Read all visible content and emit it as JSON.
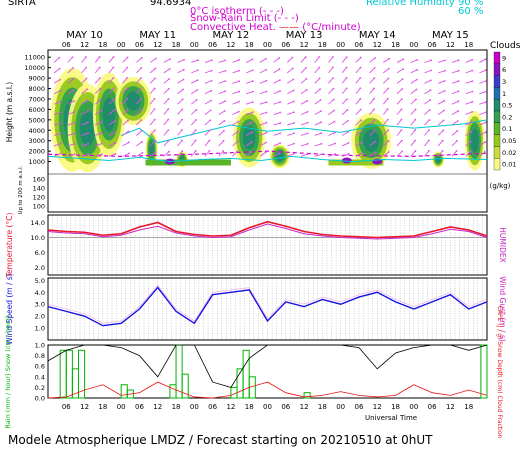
{
  "header": {
    "site": "SIRTA",
    "lon": "94.6934",
    "isotherm_label": "0°C isotherm",
    "isotherm_key": "(- - -)",
    "snow_rain_label": "Snow-Rain Limit",
    "snow_rain_key": "(- - -)",
    "convective_label": "Convective Heat.",
    "convective_unit": "(°C/minute)",
    "rh_label": "Relative Humidity",
    "rh_value_1": "90 %",
    "rh_value_2": "60 %"
  },
  "days": [
    "MAY 10",
    "MAY 11",
    "MAY 12",
    "MAY 13",
    "MAY 14",
    "MAY 15"
  ],
  "hours": [
    "06",
    "12",
    "18",
    "00"
  ],
  "universal_time_label": "Universal Time",
  "footer": "Modele Atmospherique LMDZ / Forecast starting on 20210510 at 0hUT",
  "colors": {
    "temperature": "#e8142a",
    "humidex": "#c828c8",
    "wind": "#1414e0",
    "rain": "#00b400",
    "cape": "#e81414",
    "wind_arrow": "#e050e8",
    "rh_contour": "#00c8d2"
  },
  "chart_data": [
    {
      "type": "heatmap",
      "title": "Clouds",
      "ylabel": "Height (m a.s.l.)",
      "ylabel_lower": "Up to 200 m a.s.l.",
      "yticks": [
        "11000",
        "10000",
        "9000",
        "8000",
        "7000",
        "6000",
        "5000",
        "4000",
        "3000",
        "2000",
        "1000",
        "160",
        "140",
        "120",
        "100"
      ],
      "ylim": [
        0,
        11500
      ],
      "colorbar_label": "(g/kg)",
      "colorbar_ticks": [
        "9",
        "6",
        "3",
        "1",
        "0.5",
        "0.2",
        "0.1",
        "0.05",
        "0.02",
        "0.01"
      ],
      "colorbar_colors": [
        "#c800c8",
        "#8a14be",
        "#3c3cc8",
        "#1e6eb4",
        "#1e8c6e",
        "#32a050",
        "#5ab428",
        "#96c81e",
        "#c8dc3c",
        "#fafa82"
      ]
    },
    {
      "type": "line",
      "ylabel": "Temperature (°C)",
      "ylabel_right": "HUMIDEX",
      "yticks": [
        "14.0",
        "10.0",
        "6.0",
        "2.0"
      ],
      "ylim": [
        0,
        16
      ],
      "x_hours": [
        0,
        6,
        12,
        18,
        24,
        30,
        36,
        42,
        48,
        54,
        60,
        66,
        72,
        78,
        84,
        90,
        96,
        102,
        108,
        114,
        120,
        126,
        132,
        138,
        144
      ],
      "series": [
        {
          "name": "Temperature",
          "values": [
            12.0,
            11.6,
            11.4,
            10.6,
            11.0,
            12.8,
            14.0,
            11.6,
            10.8,
            10.4,
            10.6,
            12.6,
            14.2,
            13.0,
            11.6,
            10.8,
            10.4,
            10.2,
            10.0,
            10.2,
            10.4,
            11.6,
            12.8,
            12.0,
            10.4
          ]
        },
        {
          "name": "HUMIDEX",
          "values": [
            11.6,
            11.2,
            11.0,
            10.2,
            10.6,
            12.0,
            13.0,
            11.2,
            10.4,
            10.0,
            10.2,
            12.0,
            13.6,
            12.4,
            11.0,
            10.4,
            10.0,
            9.8,
            9.6,
            9.8,
            10.0,
            11.0,
            12.2,
            11.6,
            10.0
          ]
        }
      ]
    },
    {
      "type": "line",
      "ylabel": "Wind Speed (m / s)",
      "ylabel_right": "Wind Gust (m / s)",
      "yticks": [
        "5.0",
        "4.0",
        "3.0",
        "2.0",
        "1.0"
      ],
      "ylim": [
        0,
        5.2
      ],
      "x_hours": [
        0,
        6,
        12,
        18,
        24,
        30,
        36,
        42,
        48,
        54,
        60,
        66,
        72,
        78,
        84,
        90,
        96,
        102,
        108,
        114,
        120,
        126,
        132,
        138,
        144
      ],
      "series": [
        {
          "name": "Wind Speed",
          "values": [
            2.8,
            2.4,
            2.0,
            1.2,
            1.4,
            2.6,
            4.4,
            2.4,
            1.4,
            3.8,
            4.0,
            4.2,
            1.6,
            3.2,
            2.8,
            3.4,
            3.0,
            3.6,
            4.0,
            3.2,
            2.6,
            3.2,
            3.8,
            2.6,
            3.2
          ]
        },
        {
          "name": "Wind Gust",
          "values": [
            3.0,
            2.6,
            2.2,
            1.4,
            1.6,
            2.8,
            4.6,
            2.6,
            1.6,
            4.0,
            4.2,
            4.4,
            1.8,
            3.4,
            3.0,
            3.6,
            3.2,
            3.8,
            4.2,
            3.4,
            2.8,
            3.4,
            4.0,
            2.8,
            3.4
          ]
        }
      ]
    },
    {
      "type": "bar",
      "ylabel": "Rain (mm / hour) Snow (cm / hour)",
      "ylabel_right": "CAPE (J / g) Snow Depth (cm) Cloud Fraction",
      "yticks": [
        "1.0",
        "0.8",
        "0.6",
        "0.4",
        "0.2",
        "0.0"
      ],
      "ylim": [
        0,
        1.0
      ],
      "rain_bars": [
        {
          "x": 5,
          "value": 0.9
        },
        {
          "x": 7,
          "value": 0.9
        },
        {
          "x": 9,
          "value": 0.55
        },
        {
          "x": 11,
          "value": 0.9
        },
        {
          "x": 25,
          "value": 0.25
        },
        {
          "x": 27,
          "value": 0.15
        },
        {
          "x": 41,
          "value": 0.25
        },
        {
          "x": 43,
          "value": 1.0
        },
        {
          "x": 45,
          "value": 0.45
        },
        {
          "x": 61,
          "value": 0.2
        },
        {
          "x": 63,
          "value": 0.55
        },
        {
          "x": 65,
          "value": 0.9
        },
        {
          "x": 67,
          "value": 0.4
        },
        {
          "x": 85,
          "value": 0.1
        },
        {
          "x": 143,
          "value": 1.0
        }
      ],
      "series": [
        {
          "name": "Cloud Fraction",
          "x": [
            0,
            6,
            12,
            18,
            24,
            30,
            36,
            42,
            48,
            54,
            60,
            66,
            72,
            78,
            84,
            90,
            96,
            102,
            108,
            114,
            120,
            126,
            132,
            138,
            144
          ],
          "values": [
            0.7,
            0.9,
            1.0,
            1.0,
            0.95,
            0.8,
            0.4,
            1.0,
            1.0,
            0.3,
            0.2,
            0.75,
            1.0,
            1.0,
            1.0,
            1.0,
            1.0,
            0.95,
            0.55,
            0.85,
            0.95,
            1.0,
            1.0,
            0.9,
            1.0
          ]
        },
        {
          "name": "CAPE",
          "x": [
            0,
            6,
            12,
            18,
            24,
            30,
            36,
            42,
            48,
            54,
            60,
            66,
            72,
            78,
            84,
            90,
            96,
            102,
            108,
            114,
            120,
            126,
            132,
            138,
            144
          ],
          "values": [
            0.0,
            0.02,
            0.15,
            0.25,
            0.05,
            0.1,
            0.3,
            0.15,
            0.02,
            0.0,
            0.05,
            0.2,
            0.3,
            0.1,
            0.02,
            0.05,
            0.12,
            0.05,
            0.02,
            0.05,
            0.25,
            0.1,
            0.05,
            0.15,
            0.05
          ]
        }
      ]
    }
  ]
}
